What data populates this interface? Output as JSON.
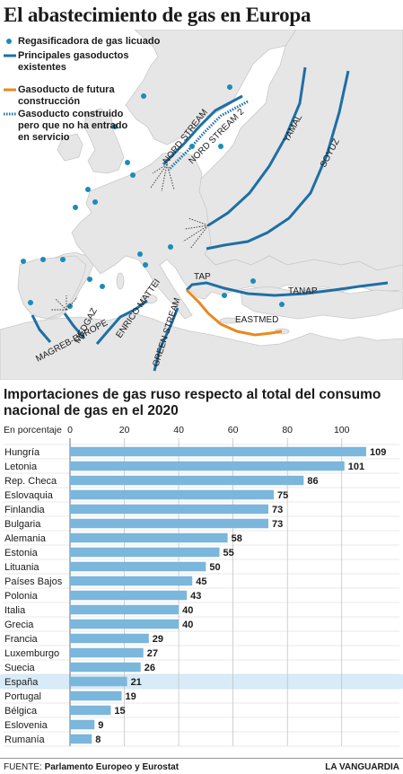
{
  "title": "El abastecimiento de gas en Europa",
  "legend": {
    "regasificadora": "Regasificadora de gas licuado",
    "existentes": "Principales gasoductos existentes",
    "futura": "Gasoducto de futura construcción",
    "construido": "Gasoducto construido pero que no ha entrado en servicio"
  },
  "map_labels": {
    "nord_stream": "NORD STREAM",
    "nord_stream_2": "NORD STREAM 2",
    "yamal": "YAMAL",
    "soyuz": "SOYUZ",
    "tap": "TAP",
    "tanap": "TANAP",
    "eastmed": "EASTMED",
    "medgaz": "MEDGAZ",
    "enrico_mattei": "ENRICO MATTEI",
    "magreb_europe": "MAGREB-EUROPE",
    "green_stream": "GREEN STREAM"
  },
  "colors": {
    "pipeline": "#1d6fa5",
    "future": "#e8891f",
    "dot": "#1d8bb8",
    "land": "#e6e6e6",
    "sea": "#ffffff",
    "bar": "#7bb6dc",
    "highlight": "#d7ecf8"
  },
  "chart_data": {
    "type": "bar",
    "orientation": "horizontal",
    "title": "Importaciones de gas ruso respecto al total del consumo nacional de gas en el 2020",
    "xlabel": "En porcentaje",
    "xlim": [
      0,
      110
    ],
    "xticks": [
      0,
      20,
      40,
      60,
      80,
      100
    ],
    "grid": true,
    "categories": [
      "Hungría",
      "Letonia",
      "Rep. Checa",
      "Eslovaquia",
      "Finlandia",
      "Bulgaria",
      "Alemania",
      "Estonia",
      "Lituania",
      "Países Bajos",
      "Polonia",
      "Italia",
      "Grecia",
      "Francia",
      "Luxemburgo",
      "Suecia",
      "España",
      "Portugal",
      "Bélgica",
      "Eslovenia",
      "Rumanía"
    ],
    "values": [
      109,
      101,
      86,
      75,
      73,
      73,
      58,
      55,
      50,
      45,
      43,
      40,
      40,
      29,
      27,
      26,
      21,
      19,
      15,
      9,
      8
    ],
    "highlight": "España"
  },
  "footer": {
    "source_label": "FUENTE:",
    "source": "Parlamento Europeo y Eurostat",
    "brand": "LA VANGUARDIA"
  }
}
